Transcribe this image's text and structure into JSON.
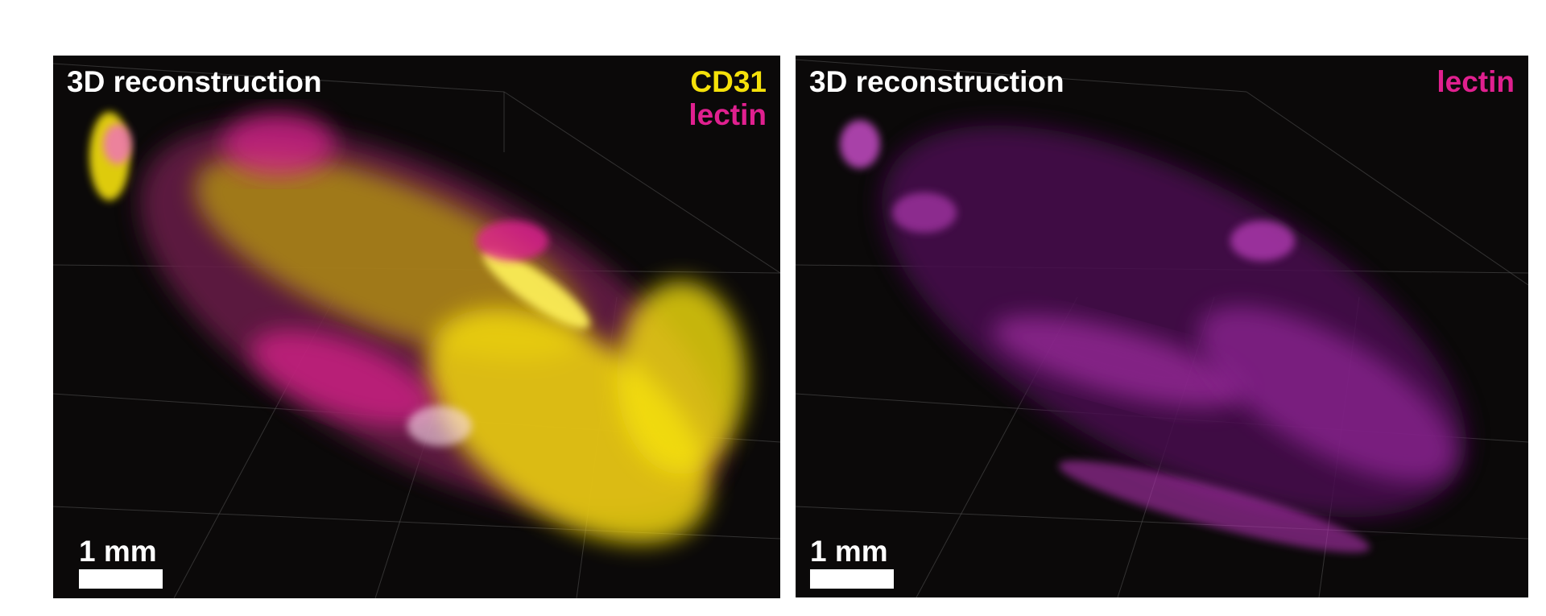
{
  "panels": [
    {
      "title": "3D reconstruction",
      "labels": [
        "CD31",
        "lectin"
      ],
      "scale_bar": "1 mm"
    },
    {
      "title": "3D reconstruction",
      "labels": [
        "lectin"
      ],
      "scale_bar": "1 mm"
    }
  ]
}
